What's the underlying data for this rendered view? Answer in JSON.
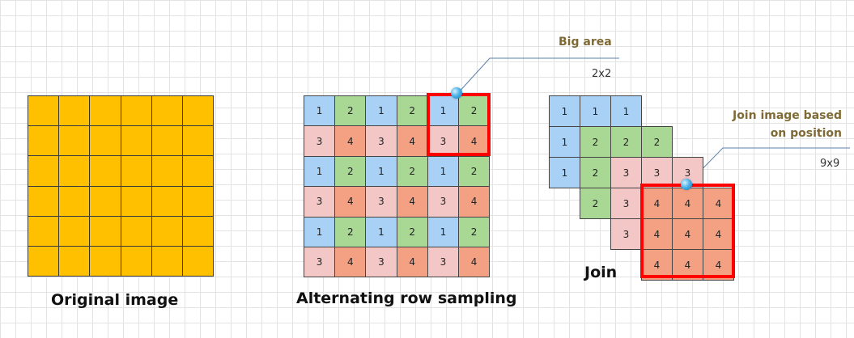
{
  "colors": {
    "original": "#ffc000",
    "q1": "#a9d0f5",
    "q2": "#a8d894",
    "q3": "#f4c7c7",
    "q4": "#f4a083",
    "highlight": "#ff0000",
    "callout_line": "#5a7fa8",
    "callout_dot": "#2a9ad8"
  },
  "original_image": {
    "caption": "Original image",
    "rows": 6,
    "cols": 6
  },
  "sampling": {
    "caption": "Alternating row sampling",
    "rows": [
      [
        "1",
        "2",
        "1",
        "2",
        "1",
        "2"
      ],
      [
        "3",
        "4",
        "3",
        "4",
        "3",
        "4"
      ],
      [
        "1",
        "2",
        "1",
        "2",
        "1",
        "2"
      ],
      [
        "3",
        "4",
        "3",
        "4",
        "3",
        "4"
      ],
      [
        "1",
        "2",
        "1",
        "2",
        "1",
        "2"
      ],
      [
        "3",
        "4",
        "3",
        "4",
        "3",
        "4"
      ]
    ],
    "callout_title": "Big area",
    "callout_value": "2x2"
  },
  "join": {
    "caption": "Join",
    "layers": [
      [
        "1",
        "1",
        "1"
      ],
      [
        "2",
        "2",
        "2"
      ],
      [
        "3",
        "3",
        "3"
      ],
      [
        "4",
        "4",
        "4"
      ]
    ],
    "callout_title_line1": "Join image based",
    "callout_title_line2": "on position",
    "callout_value": "9x9"
  }
}
